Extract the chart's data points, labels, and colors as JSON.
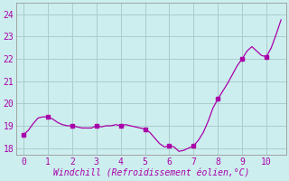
{
  "title": "",
  "xlabel": "Windchill (Refroidissement éolien,°C)",
  "ylabel": "",
  "bg_color": "#cceeee",
  "grid_color": "#aacccc",
  "line_color": "#aa00aa",
  "marker_color": "#aa00aa",
  "xlim": [
    -0.3,
    10.8
  ],
  "ylim": [
    17.7,
    24.5
  ],
  "xticks": [
    0,
    1,
    2,
    3,
    4,
    5,
    6,
    7,
    8,
    9,
    10
  ],
  "yticks": [
    18,
    19,
    20,
    21,
    22,
    23,
    24
  ],
  "x": [
    0.0,
    0.2,
    0.4,
    0.6,
    0.8,
    1.0,
    1.2,
    1.4,
    1.6,
    1.8,
    2.0,
    2.2,
    2.4,
    2.6,
    2.8,
    3.0,
    3.2,
    3.4,
    3.6,
    3.8,
    4.0,
    4.2,
    4.4,
    4.6,
    4.8,
    5.0,
    5.2,
    5.4,
    5.6,
    5.8,
    6.0,
    6.2,
    6.4,
    6.6,
    6.8,
    7.0,
    7.2,
    7.4,
    7.6,
    7.8,
    8.0,
    8.2,
    8.4,
    8.6,
    8.8,
    9.0,
    9.2,
    9.4,
    9.6,
    9.8,
    10.0,
    10.2,
    10.4,
    10.6
  ],
  "y": [
    18.6,
    18.8,
    19.1,
    19.35,
    19.4,
    19.4,
    19.3,
    19.15,
    19.05,
    19.0,
    19.0,
    18.95,
    18.9,
    18.9,
    18.9,
    19.0,
    18.95,
    19.0,
    19.0,
    19.05,
    19.0,
    19.05,
    19.0,
    18.95,
    18.9,
    18.85,
    18.7,
    18.45,
    18.2,
    18.05,
    18.1,
    18.05,
    17.85,
    17.9,
    18.0,
    18.1,
    18.35,
    18.7,
    19.2,
    19.8,
    20.2,
    20.55,
    20.9,
    21.3,
    21.7,
    22.0,
    22.35,
    22.55,
    22.35,
    22.15,
    22.1,
    22.5,
    23.1,
    23.75
  ],
  "marker_x": [
    0.0,
    1.0,
    2.0,
    3.0,
    4.0,
    5.0,
    6.0,
    7.0,
    8.0,
    9.0,
    10.0
  ],
  "marker_y": [
    18.6,
    19.4,
    19.0,
    19.0,
    19.0,
    18.85,
    18.1,
    18.1,
    20.2,
    22.0,
    22.1
  ],
  "tick_fontsize": 7,
  "label_fontsize": 7
}
